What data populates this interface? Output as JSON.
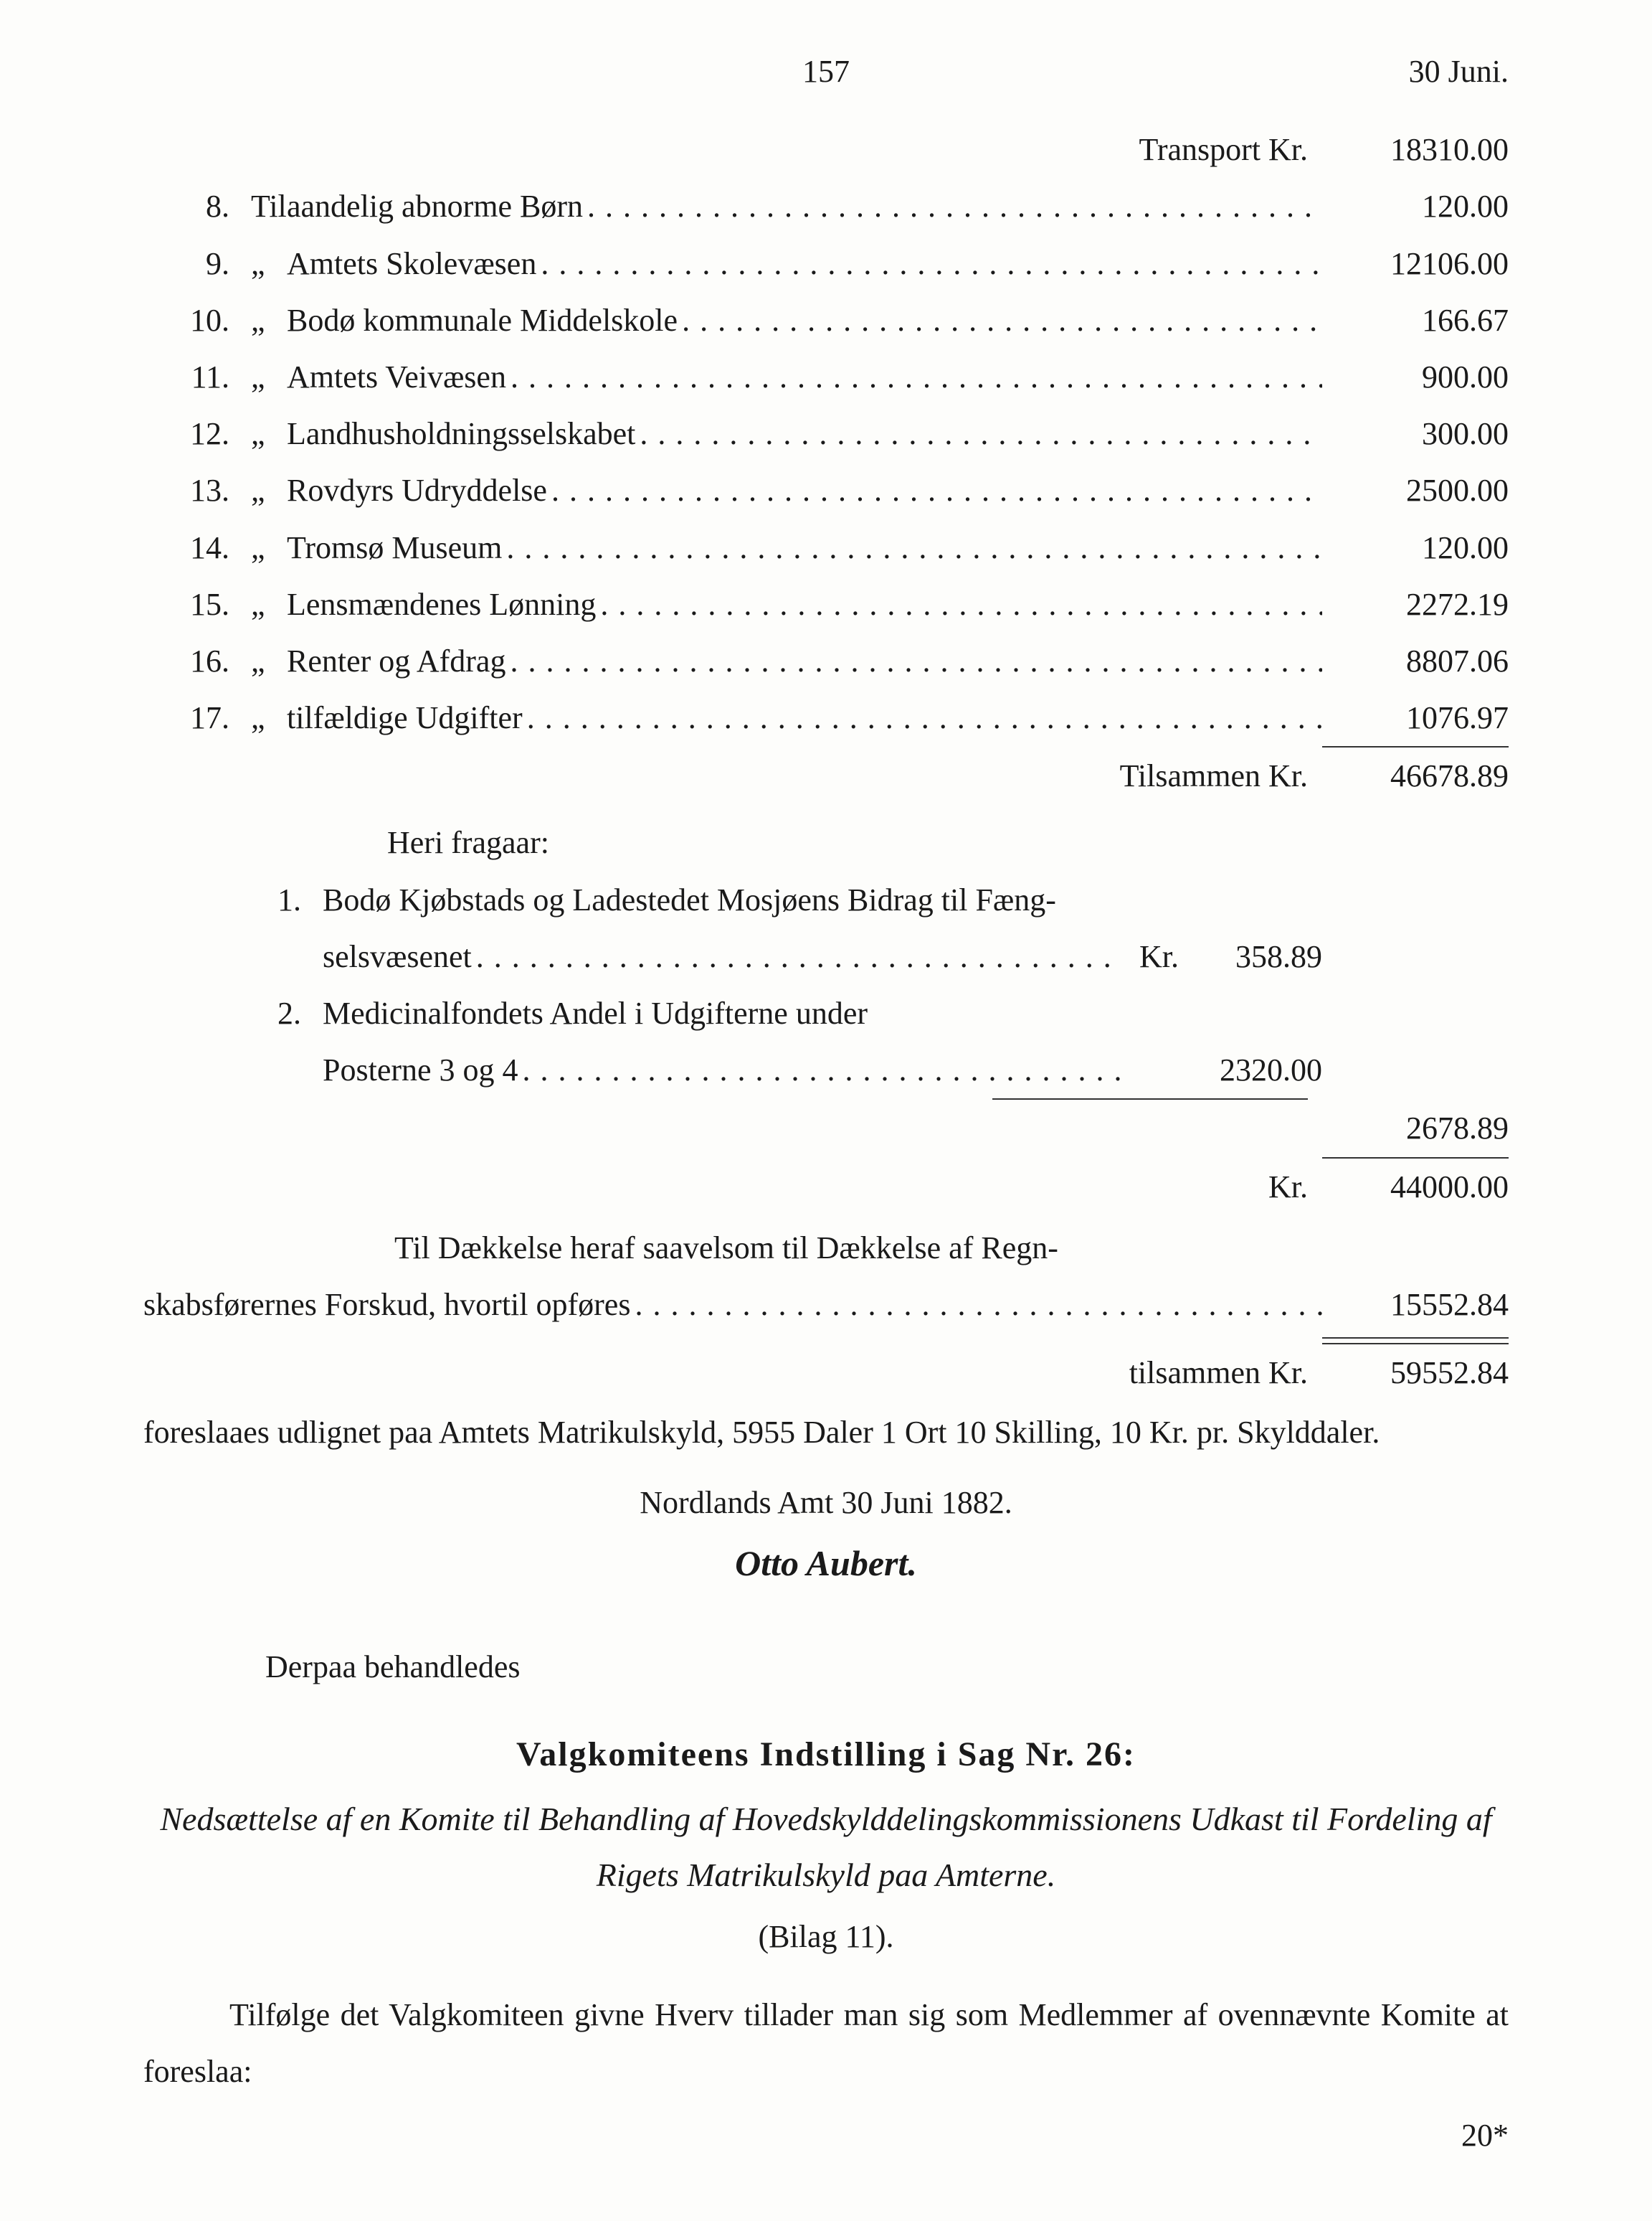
{
  "header": {
    "page_no": "157",
    "date": "30 Juni."
  },
  "transport": {
    "label": "Transport Kr.",
    "amount": "18310.00"
  },
  "items": [
    {
      "num": "8.",
      "prefix": "Til",
      "label": "aandelig abnorme Børn",
      "amount": "120.00"
    },
    {
      "num": "9.",
      "prefix": "„",
      "label": "Amtets Skolevæsen",
      "amount": "12106.00"
    },
    {
      "num": "10.",
      "prefix": "„",
      "label": "Bodø kommunale Middelskole",
      "amount": "166.67"
    },
    {
      "num": "11.",
      "prefix": "„",
      "label": "Amtets Veivæsen",
      "amount": "900.00"
    },
    {
      "num": "12.",
      "prefix": "„",
      "label": "Landhusholdningsselskabet",
      "amount": "300.00"
    },
    {
      "num": "13.",
      "prefix": "„",
      "label": "Rovdyrs Udryddelse",
      "amount": "2500.00"
    },
    {
      "num": "14.",
      "prefix": "„",
      "label": "Tromsø Museum",
      "amount": "120.00"
    },
    {
      "num": "15.",
      "prefix": "„",
      "label": "Lensmændenes Lønning",
      "amount": "2272.19"
    },
    {
      "num": "16.",
      "prefix": "„",
      "label": "Renter og Afdrag",
      "amount": "8807.06"
    },
    {
      "num": "17.",
      "prefix": "„",
      "label": "tilfældige Udgifter",
      "amount": "1076.97"
    }
  ],
  "sum1": {
    "label": "Tilsammen Kr.",
    "amount": "46678.89"
  },
  "heri": "Heri fragaar:",
  "ded": [
    {
      "num": "1.",
      "line1": "Bodø Kjøbstads og Ladestedet Mosjøens Bidrag til Fæng-",
      "line2_label": "selsvæsenet",
      "mid_prefix": "Kr.",
      "mid_amount": "358.89"
    },
    {
      "num": "2.",
      "line1": "Medicinalfondets Andel i Udgifterne under",
      "line2_label": "Posterne 3 og 4",
      "mid_prefix": "",
      "mid_amount": "2320.00"
    }
  ],
  "ded_total": "2678.89",
  "net": {
    "prefix": "Kr.",
    "amount": "44000.00"
  },
  "cover": {
    "line1": "Til Dækkelse heraf saavelsom til Dækkelse af Regn-",
    "line2_label": "skabsførernes Forskud, hvortil opføres",
    "amount": "15552.84"
  },
  "sum2": {
    "label": "tilsammen Kr.",
    "amount": "59552.84"
  },
  "closing1": "foreslaaes udlignet paa Amtets Matrikulskyld, 5955 Daler 1 Ort 10 Skilling, 10 Kr. pr. Skylddaler.",
  "placedate": "Nordlands Amt 30 Juni 1882.",
  "signature": "Otto Aubert.",
  "derpaa": "Derpaa behandledes",
  "heading": "Valgkomiteens Indstilling i Sag Nr. 26:",
  "subhead": "Nedsættelse af en Komite til Behandling af Hovedskylddelingskommissionens Udkast til Fordeling af Rigets Matrikulskyld paa Amterne.",
  "bilag": "(Bilag 11).",
  "para1": "Tilfølge det Valgkomiteen givne Hverv tillader man sig som Medlemmer af ovennævnte Komite at foreslaa:",
  "footmark": "20*",
  "leader_dots": "....................................................................................................."
}
